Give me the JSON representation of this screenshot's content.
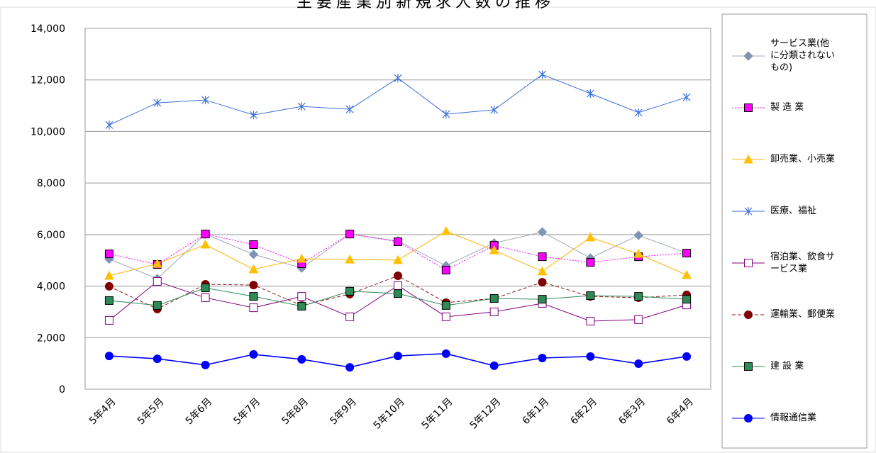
{
  "chart_data": {
    "type": "line",
    "title": "主要産業別新規求人数の推移",
    "categories": [
      "5年4月",
      "5年5月",
      "5年6月",
      "5年7月",
      "5年8月",
      "5年9月",
      "5年10月",
      "5年11月",
      "5年12月",
      "6年1月",
      "6年2月",
      "6年3月",
      "6年4月"
    ],
    "ylim": [
      0,
      14000
    ],
    "yticks": [
      0,
      {
        "value": 2000,
        "label": "2,000"
      },
      {
        "value": 4000,
        "label": "4,000"
      },
      {
        "value": 6000,
        "label": "6,000"
      },
      {
        "value": 8000,
        "label": "8,000"
      },
      {
        "value": 10000,
        "label": "10,000"
      },
      {
        "value": 12000,
        "label": "12,000"
      },
      {
        "value": 14000,
        "label": "14,000"
      }
    ],
    "grid": true,
    "legend": "right",
    "series": [
      {
        "name": "サービス業(他に分類されないもの)",
        "color": "#a0a8b4",
        "marker": "diamond",
        "marker_color": "#7f95b3",
        "dash": "solid",
        "values": [
          5050,
          4290,
          6020,
          5230,
          4700,
          6020,
          5750,
          4790,
          5670,
          6100,
          5090,
          5970,
          5280
        ]
      },
      {
        "name": "製 造 業",
        "color": "#ff00ff",
        "marker": "square",
        "marker_color": "#ff00ff",
        "dash": "dotted",
        "values": [
          5250,
          4840,
          6020,
          5610,
          4870,
          6020,
          5720,
          4620,
          5580,
          5140,
          4920,
          5140,
          5280
        ]
      },
      {
        "name": "卸売業、小売業",
        "color": "#ffb000",
        "marker": "triangle",
        "marker_color": "#ffc000",
        "dash": "solid",
        "values": [
          4400,
          4870,
          5610,
          4650,
          5060,
          5030,
          5010,
          6130,
          5390,
          4570,
          5890,
          5250,
          4430
        ]
      },
      {
        "name": "医療、福祉",
        "color": "#3a6fd8",
        "marker": "star",
        "marker_color": "#3a6fd8",
        "dash": "solid",
        "values": [
          10250,
          11110,
          11220,
          10640,
          10970,
          10860,
          12070,
          10670,
          10840,
          12210,
          11470,
          10730,
          11330
        ]
      },
      {
        "name": "宿泊業、飲食サービス業",
        "color": "#800080",
        "marker": "open-square",
        "marker_color": "#800080",
        "dash": "solid",
        "values": [
          2670,
          4180,
          3550,
          3160,
          3600,
          2810,
          4020,
          2810,
          3000,
          3330,
          2640,
          2700,
          3270
        ]
      },
      {
        "name": "運輸業、郵便業",
        "color": "#8b1a1a",
        "marker": "circle",
        "marker_color": "#800000",
        "dash": "dashed",
        "values": [
          3990,
          3110,
          4070,
          4040,
          3250,
          3690,
          4400,
          3360,
          3520,
          4150,
          3600,
          3550,
          3660
        ]
      },
      {
        "name": "建 設 業",
        "color": "#2e8b57",
        "marker": "square",
        "marker_color": "#2e8b57",
        "dash": "solid",
        "values": [
          3440,
          3250,
          3930,
          3600,
          3220,
          3800,
          3710,
          3250,
          3520,
          3490,
          3630,
          3600,
          3490
        ]
      },
      {
        "name": "情報通信業",
        "color": "#0000ff",
        "marker": "circle",
        "marker_color": "#0000ff",
        "dash": "solid",
        "values": [
          1290,
          1180,
          940,
          1350,
          1160,
          850,
          1290,
          1380,
          910,
          1210,
          1270,
          990,
          1270
        ]
      }
    ]
  }
}
